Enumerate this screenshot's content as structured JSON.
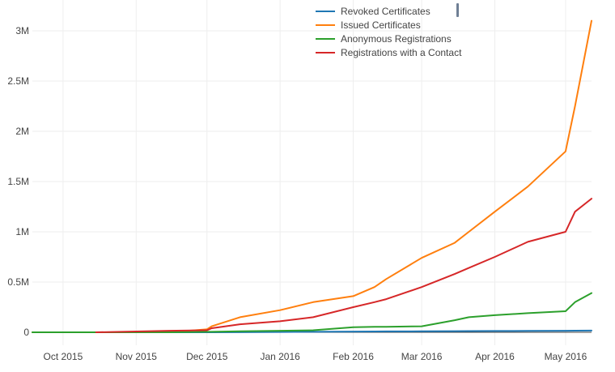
{
  "chart_data": {
    "type": "line",
    "title": "",
    "xlabel": "",
    "ylabel": "",
    "x": [
      "2015-09-18",
      "2015-10-15",
      "2015-11-01",
      "2015-11-15",
      "2015-12-01",
      "2015-12-03",
      "2015-12-15",
      "2016-01-01",
      "2016-01-15",
      "2016-02-01",
      "2016-02-10",
      "2016-02-15",
      "2016-03-01",
      "2016-03-15",
      "2016-03-21",
      "2016-04-01",
      "2016-04-15",
      "2016-05-01",
      "2016-05-05",
      "2016-05-12"
    ],
    "series": [
      {
        "name": "Revoked Certificates",
        "color": "#1f77b4",
        "values": [
          0,
          0,
          0,
          0,
          0,
          0,
          1000,
          3000,
          5000,
          7000,
          8000,
          9000,
          10000,
          11000,
          12000,
          13000,
          14000,
          15000,
          16000,
          17000
        ]
      },
      {
        "name": "Issued Certificates",
        "color": "#ff7f0e",
        "values": [
          0,
          0,
          0,
          0,
          30000,
          60000,
          150000,
          220000,
          300000,
          360000,
          450000,
          530000,
          740000,
          890000,
          1000000,
          1200000,
          1450000,
          1800000,
          2250000,
          3100000
        ]
      },
      {
        "name": "Anonymous Registrations",
        "color": "#2ca02c",
        "values": [
          0,
          0,
          0,
          0,
          5000,
          5000,
          10000,
          15000,
          20000,
          50000,
          55000,
          55000,
          60000,
          120000,
          150000,
          170000,
          190000,
          210000,
          300000,
          390000
        ]
      },
      {
        "name": "Registrations with a Contact",
        "color": "#d62728",
        "values": [
          null,
          0,
          8000,
          15000,
          20000,
          40000,
          80000,
          110000,
          150000,
          250000,
          300000,
          330000,
          450000,
          580000,
          640000,
          750000,
          900000,
          1000000,
          1200000,
          1330000
        ]
      }
    ],
    "x_ticks": [
      "Oct 2015",
      "Nov 2015",
      "Dec 2015",
      "Jan 2016",
      "Feb 2016",
      "Mar 2016",
      "Apr 2016",
      "May 2016"
    ],
    "y_ticks": [
      "0",
      "0.5M",
      "1M",
      "1.5M",
      "2M",
      "2.5M",
      "3M"
    ],
    "xlim": [
      "2015-09-18",
      "2016-05-12"
    ],
    "ylim": [
      0,
      3150000
    ],
    "grid": true,
    "legend_position": "top-center"
  }
}
